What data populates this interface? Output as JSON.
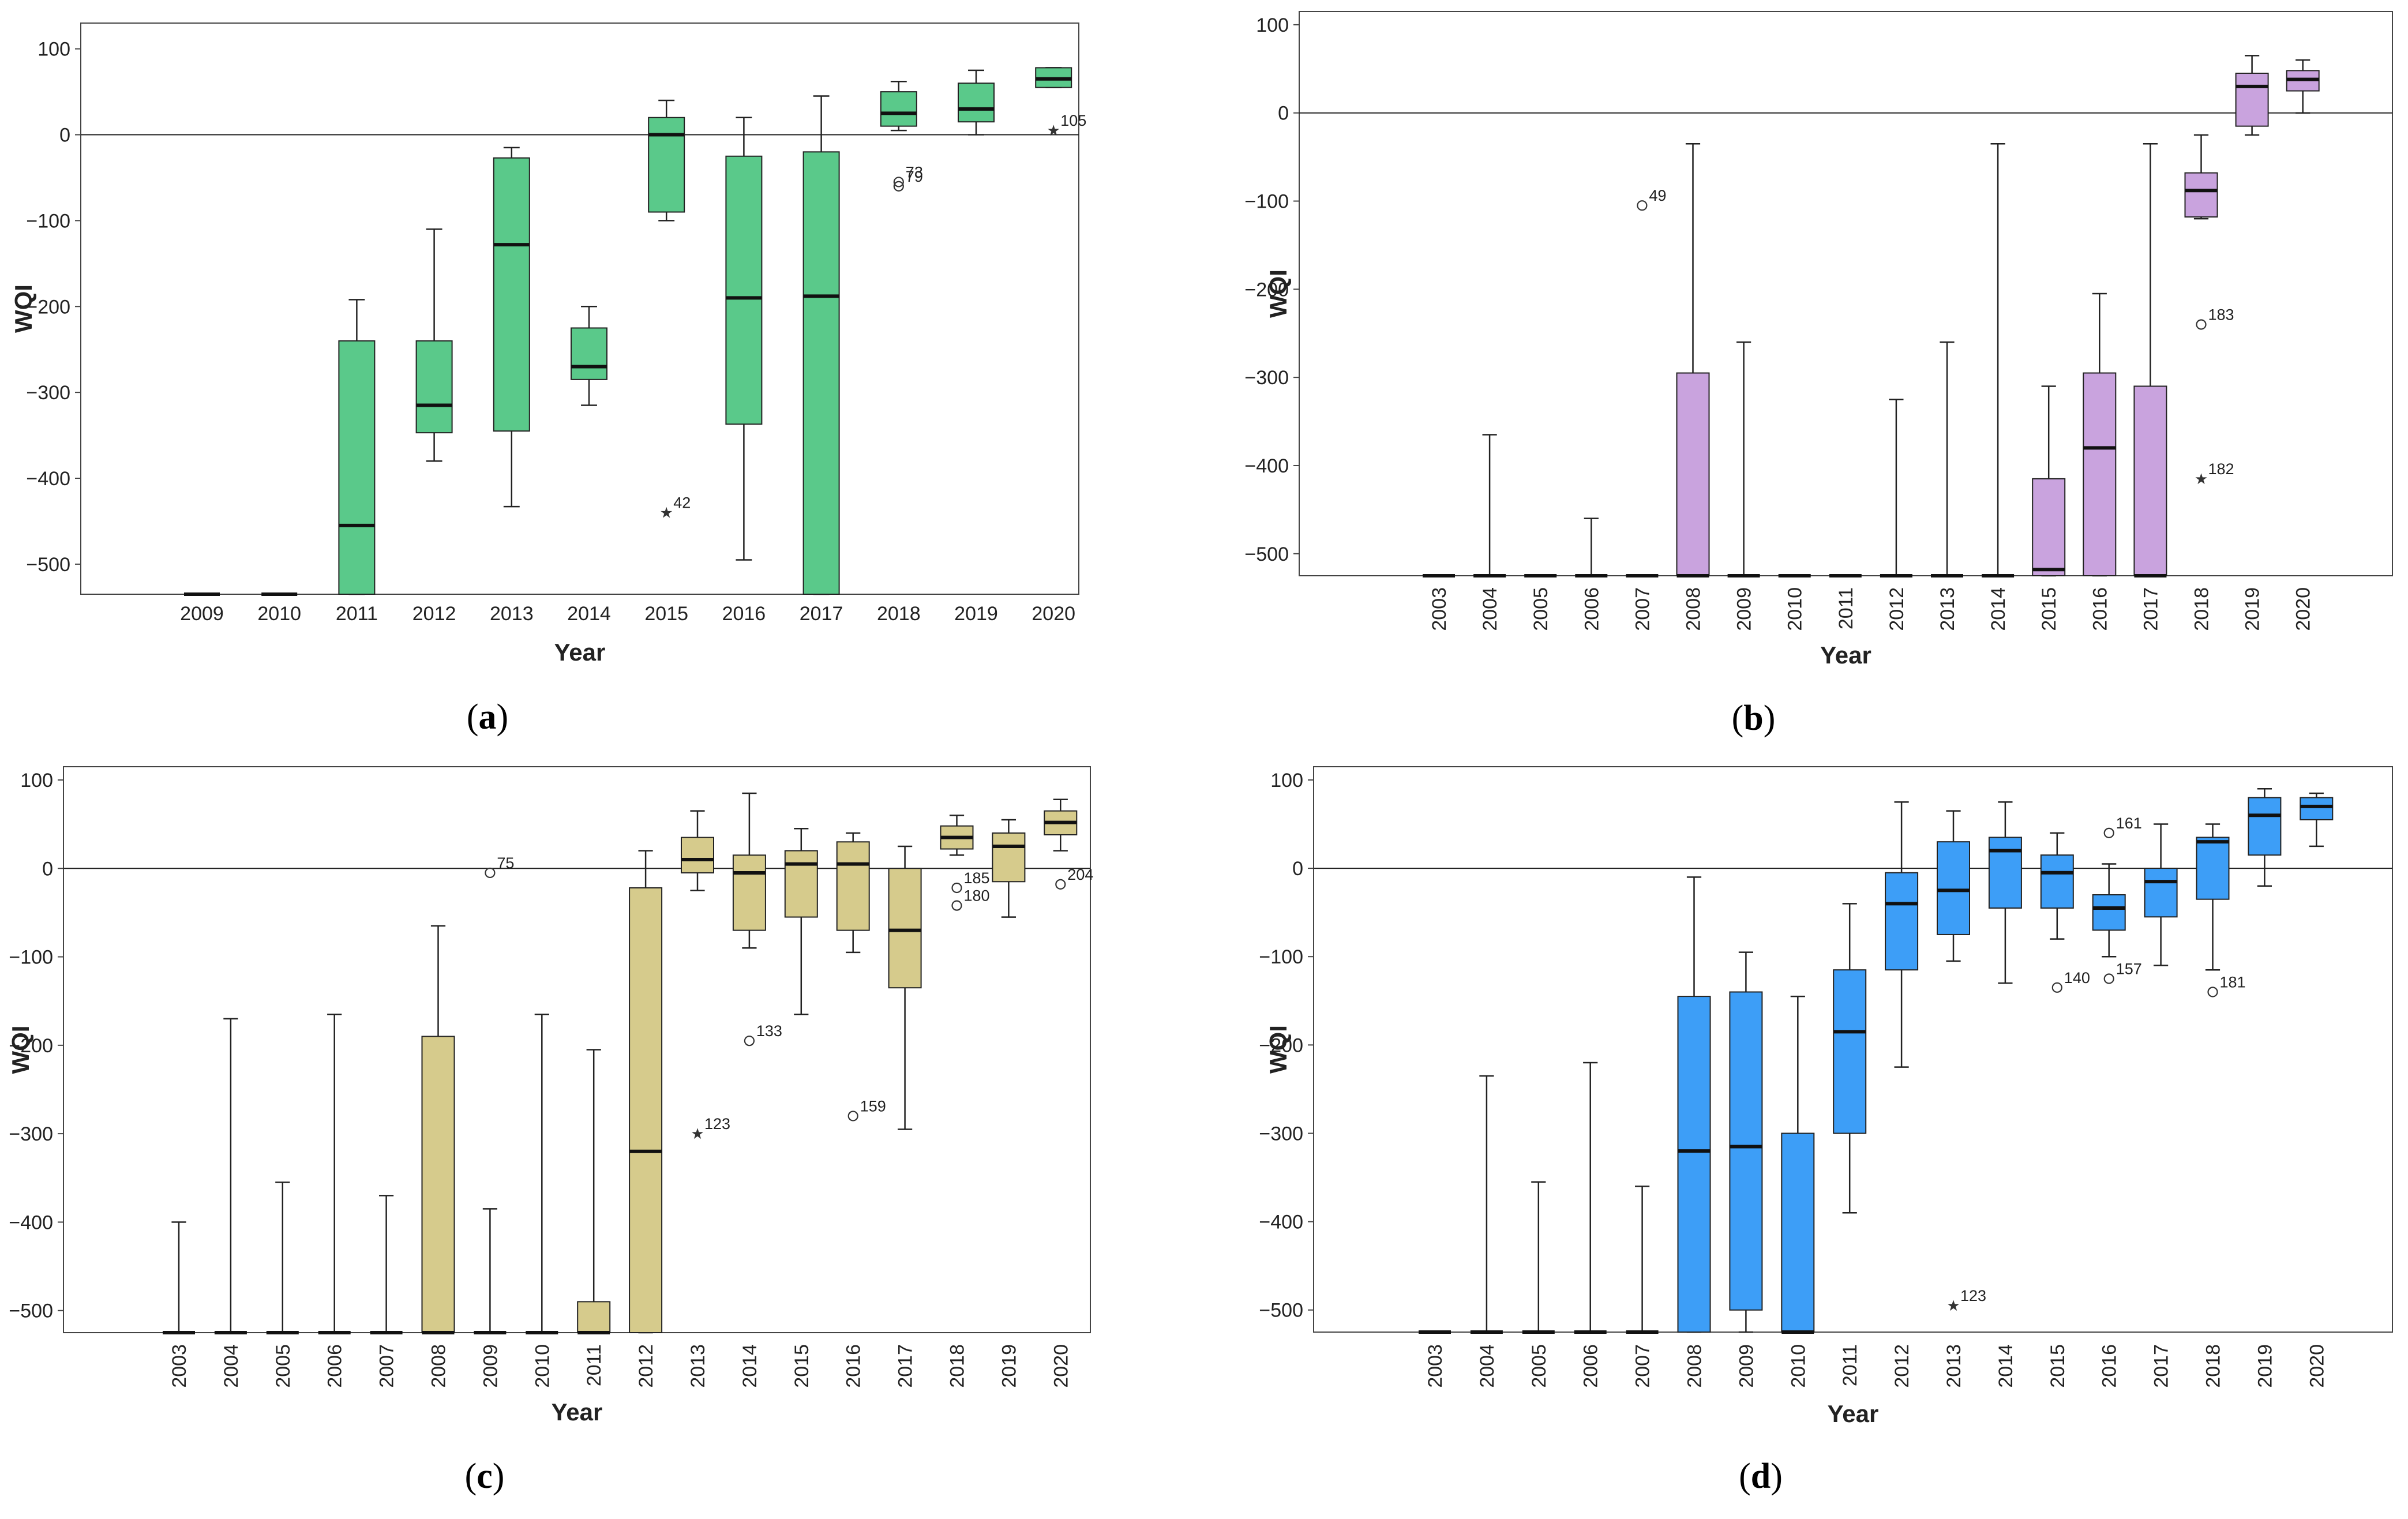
{
  "chart_data": [
    {
      "id": "a",
      "type": "box",
      "panel_label": "a",
      "xlabel": "Year",
      "ylabel": "WQI",
      "ylim": [
        -535,
        130
      ],
      "yticks": [
        100,
        0,
        -100,
        -200,
        -300,
        -400,
        -500
      ],
      "ytick_labels": [
        "100",
        "0",
        "−100",
        "−200",
        "−300",
        "−400",
        "−500"
      ],
      "xtick_orientation": "horizontal",
      "reference_line": 0,
      "color": "#5ac98a",
      "categories": [
        "2009",
        "2010",
        "2011",
        "2012",
        "2013",
        "2014",
        "2015",
        "2016",
        "2017",
        "2018",
        "2019",
        "2020"
      ],
      "boxes": [
        {
          "min": -535,
          "q1": -535,
          "median": -535,
          "q3": -535,
          "max": -535
        },
        {
          "min": -535,
          "q1": -535,
          "median": -535,
          "q3": -535,
          "max": -535
        },
        {
          "min": -535,
          "q1": -535,
          "median": -455,
          "q3": -240,
          "max": -192
        },
        {
          "min": -380,
          "q1": -347,
          "median": -315,
          "q3": -240,
          "max": -110
        },
        {
          "min": -433,
          "q1": -345,
          "median": -128,
          "q3": -27,
          "max": -15
        },
        {
          "min": -315,
          "q1": -285,
          "median": -270,
          "q3": -225,
          "max": -200
        },
        {
          "min": -100,
          "q1": -90,
          "median": 0,
          "q3": 20,
          "max": 40
        },
        {
          "min": -495,
          "q1": -337,
          "median": -190,
          "q3": -25,
          "max": 20
        },
        {
          "min": -535,
          "q1": -535,
          "median": -188,
          "q3": -20,
          "max": 45
        },
        {
          "min": 5,
          "q1": 10,
          "median": 25,
          "q3": 50,
          "max": 62
        },
        {
          "min": 0,
          "q1": 15,
          "median": 30,
          "q3": 60,
          "max": 75
        },
        {
          "min": 55,
          "q1": 55,
          "median": 65,
          "q3": 78,
          "max": 78
        }
      ],
      "outliers": [
        {
          "category": "2015",
          "value": -440,
          "symbol": "star",
          "label": "42"
        },
        {
          "category": "2018",
          "value": -55,
          "symbol": "circle",
          "label": "73"
        },
        {
          "category": "2018",
          "value": -60,
          "symbol": "circle",
          "label": "79"
        },
        {
          "category": "2020",
          "value": 5,
          "symbol": "star",
          "label": "105"
        }
      ]
    },
    {
      "id": "b",
      "type": "box",
      "panel_label": "b",
      "xlabel": "Year",
      "ylabel": "WQI",
      "ylim": [
        -525,
        115
      ],
      "yticks": [
        100,
        0,
        -100,
        -200,
        -300,
        -400,
        -500
      ],
      "ytick_labels": [
        "100",
        "0",
        "−100",
        "−200",
        "−300",
        "−400",
        "−500"
      ],
      "xtick_orientation": "vertical",
      "reference_line": 0,
      "color": "#c9a3de",
      "categories": [
        "2003",
        "2004",
        "2005",
        "2006",
        "2007",
        "2008",
        "2009",
        "2010",
        "2011",
        "2012",
        "2013",
        "2014",
        "2015",
        "2016",
        "2017",
        "2018",
        "2019",
        "2020"
      ],
      "boxes": [
        {
          "min": -525,
          "q1": -525,
          "median": -525,
          "q3": -525,
          "max": -525
        },
        {
          "min": -525,
          "q1": -525,
          "median": -525,
          "q3": -525,
          "max": -365
        },
        {
          "min": -525,
          "q1": -525,
          "median": -525,
          "q3": -525,
          "max": -525
        },
        {
          "min": -525,
          "q1": -525,
          "median": -525,
          "q3": -525,
          "max": -460
        },
        {
          "min": -525,
          "q1": -525,
          "median": -525,
          "q3": -525,
          "max": -525
        },
        {
          "min": -525,
          "q1": -525,
          "median": -525,
          "q3": -295,
          "max": -35
        },
        {
          "min": -525,
          "q1": -525,
          "median": -525,
          "q3": -525,
          "max": -260
        },
        {
          "min": -525,
          "q1": -525,
          "median": -525,
          "q3": -525,
          "max": -525
        },
        {
          "min": -525,
          "q1": -525,
          "median": -525,
          "q3": -525,
          "max": -525
        },
        {
          "min": -525,
          "q1": -525,
          "median": -525,
          "q3": -525,
          "max": -325
        },
        {
          "min": -525,
          "q1": -525,
          "median": -525,
          "q3": -525,
          "max": -260
        },
        {
          "min": -525,
          "q1": -525,
          "median": -525,
          "q3": -525,
          "max": -35
        },
        {
          "min": -525,
          "q1": -525,
          "median": -518,
          "q3": -415,
          "max": -310
        },
        {
          "min": -525,
          "q1": -525,
          "median": -380,
          "q3": -295,
          "max": -205
        },
        {
          "min": -525,
          "q1": -525,
          "median": -525,
          "q3": -310,
          "max": -35
        },
        {
          "min": -120,
          "q1": -118,
          "median": -88,
          "q3": -68,
          "max": -25
        },
        {
          "min": -25,
          "q1": -15,
          "median": 30,
          "q3": 45,
          "max": 65
        },
        {
          "min": 0,
          "q1": 25,
          "median": 38,
          "q3": 48,
          "max": 60
        }
      ],
      "outliers": [
        {
          "category": "2007",
          "value": -105,
          "symbol": "circle",
          "label": "49"
        },
        {
          "category": "2018",
          "value": -240,
          "symbol": "circle",
          "label": "183"
        },
        {
          "category": "2018",
          "value": -415,
          "symbol": "star",
          "label": "182"
        }
      ]
    },
    {
      "id": "c",
      "type": "box",
      "panel_label": "c",
      "xlabel": "Year",
      "ylabel": "WQI",
      "ylim": [
        -525,
        115
      ],
      "yticks": [
        100,
        0,
        -100,
        -200,
        -300,
        -400,
        -500
      ],
      "ytick_labels": [
        "100",
        "0",
        "−100",
        "−200",
        "−300",
        "−400",
        "−500"
      ],
      "xtick_orientation": "vertical",
      "reference_line": 0,
      "color": "#d6cb8c",
      "categories": [
        "2003",
        "2004",
        "2005",
        "2006",
        "2007",
        "2008",
        "2009",
        "2010",
        "2011",
        "2012",
        "2013",
        "2014",
        "2015",
        "2016",
        "2017",
        "2018",
        "2019",
        "2020"
      ],
      "boxes": [
        {
          "min": -525,
          "q1": -525,
          "median": -525,
          "q3": -525,
          "max": -400
        },
        {
          "min": -525,
          "q1": -525,
          "median": -525,
          "q3": -525,
          "max": -170
        },
        {
          "min": -525,
          "q1": -525,
          "median": -525,
          "q3": -525,
          "max": -355
        },
        {
          "min": -525,
          "q1": -525,
          "median": -525,
          "q3": -525,
          "max": -165
        },
        {
          "min": -525,
          "q1": -525,
          "median": -525,
          "q3": -525,
          "max": -370
        },
        {
          "min": -525,
          "q1": -525,
          "median": -525,
          "q3": -190,
          "max": -65
        },
        {
          "min": -525,
          "q1": -525,
          "median": -525,
          "q3": -525,
          "max": -385
        },
        {
          "min": -525,
          "q1": -525,
          "median": -525,
          "q3": -525,
          "max": -165
        },
        {
          "min": -525,
          "q1": -525,
          "median": -525,
          "q3": -490,
          "max": -205
        },
        {
          "min": -525,
          "q1": -525,
          "median": -320,
          "q3": -22,
          "max": 20
        },
        {
          "min": -25,
          "q1": -5,
          "median": 10,
          "q3": 35,
          "max": 65
        },
        {
          "min": -90,
          "q1": -70,
          "median": -5,
          "q3": 15,
          "max": 85
        },
        {
          "min": -165,
          "q1": -55,
          "median": 5,
          "q3": 20,
          "max": 45
        },
        {
          "min": -95,
          "q1": -70,
          "median": 5,
          "q3": 30,
          "max": 40
        },
        {
          "min": -295,
          "q1": -135,
          "median": -70,
          "q3": 0,
          "max": 25
        },
        {
          "min": 15,
          "q1": 22,
          "median": 35,
          "q3": 48,
          "max": 60
        },
        {
          "min": -55,
          "q1": -15,
          "median": 25,
          "q3": 40,
          "max": 55
        },
        {
          "min": 20,
          "q1": 38,
          "median": 52,
          "q3": 65,
          "max": 78
        }
      ],
      "outliers": [
        {
          "category": "2009",
          "value": -5,
          "symbol": "circle",
          "label": "75"
        },
        {
          "category": "2013",
          "value": -300,
          "symbol": "star",
          "label": "123"
        },
        {
          "category": "2014",
          "value": -195,
          "symbol": "circle",
          "label": "133"
        },
        {
          "category": "2016",
          "value": -280,
          "symbol": "circle",
          "label": "159"
        },
        {
          "category": "2018",
          "value": -22,
          "symbol": "circle",
          "label": "185"
        },
        {
          "category": "2018",
          "value": -42,
          "symbol": "circle",
          "label": "180"
        },
        {
          "category": "2020",
          "value": -18,
          "symbol": "circle",
          "label": "204"
        }
      ]
    },
    {
      "id": "d",
      "type": "box",
      "panel_label": "d",
      "xlabel": "Year",
      "ylabel": "WQI",
      "ylim": [
        -525,
        115
      ],
      "yticks": [
        100,
        0,
        -100,
        -200,
        -300,
        -400,
        -500
      ],
      "ytick_labels": [
        "100",
        "0",
        "−100",
        "−200",
        "−300",
        "−400",
        "−500"
      ],
      "xtick_orientation": "vertical",
      "reference_line": 0,
      "color": "#3d9ef7",
      "categories": [
        "2003",
        "2004",
        "2005",
        "2006",
        "2007",
        "2008",
        "2009",
        "2010",
        "2011",
        "2012",
        "2013",
        "2014",
        "2015",
        "2016",
        "2017",
        "2018",
        "2019",
        "2020"
      ],
      "boxes": [
        {
          "min": -525,
          "q1": -525,
          "median": -525,
          "q3": -525,
          "max": -525
        },
        {
          "min": -525,
          "q1": -525,
          "median": -525,
          "q3": -525,
          "max": -235
        },
        {
          "min": -525,
          "q1": -525,
          "median": -525,
          "q3": -525,
          "max": -355
        },
        {
          "min": -525,
          "q1": -525,
          "median": -525,
          "q3": -525,
          "max": -220
        },
        {
          "min": -525,
          "q1": -525,
          "median": -525,
          "q3": -525,
          "max": -360
        },
        {
          "min": -525,
          "q1": -525,
          "median": -320,
          "q3": -145,
          "max": -10
        },
        {
          "min": -525,
          "q1": -500,
          "median": -315,
          "q3": -140,
          "max": -95
        },
        {
          "min": -525,
          "q1": -525,
          "median": -525,
          "q3": -300,
          "max": -145
        },
        {
          "min": -390,
          "q1": -300,
          "median": -185,
          "q3": -115,
          "max": -40
        },
        {
          "min": -225,
          "q1": -115,
          "median": -40,
          "q3": -5,
          "max": 75
        },
        {
          "min": -105,
          "q1": -75,
          "median": -25,
          "q3": 30,
          "max": 65
        },
        {
          "min": -130,
          "q1": -45,
          "median": 20,
          "q3": 35,
          "max": 75
        },
        {
          "min": -80,
          "q1": -45,
          "median": -5,
          "q3": 15,
          "max": 40
        },
        {
          "min": -100,
          "q1": -70,
          "median": -45,
          "q3": -30,
          "max": 5
        },
        {
          "min": -110,
          "q1": -55,
          "median": -15,
          "q3": 0,
          "max": 50
        },
        {
          "min": -115,
          "q1": -35,
          "median": 30,
          "q3": 35,
          "max": 50
        },
        {
          "min": -20,
          "q1": 15,
          "median": 60,
          "q3": 80,
          "max": 90
        },
        {
          "min": 25,
          "q1": 55,
          "median": 70,
          "q3": 80,
          "max": 85
        }
      ],
      "outliers": [
        {
          "category": "2013",
          "value": -495,
          "symbol": "star",
          "label": "123"
        },
        {
          "category": "2015",
          "value": -135,
          "symbol": "circle",
          "label": "140"
        },
        {
          "category": "2016",
          "value": 40,
          "symbol": "circle",
          "label": "161"
        },
        {
          "category": "2016",
          "value": -125,
          "symbol": "circle",
          "label": "157"
        },
        {
          "category": "2018",
          "value": -140,
          "symbol": "circle",
          "label": "181"
        }
      ]
    }
  ]
}
